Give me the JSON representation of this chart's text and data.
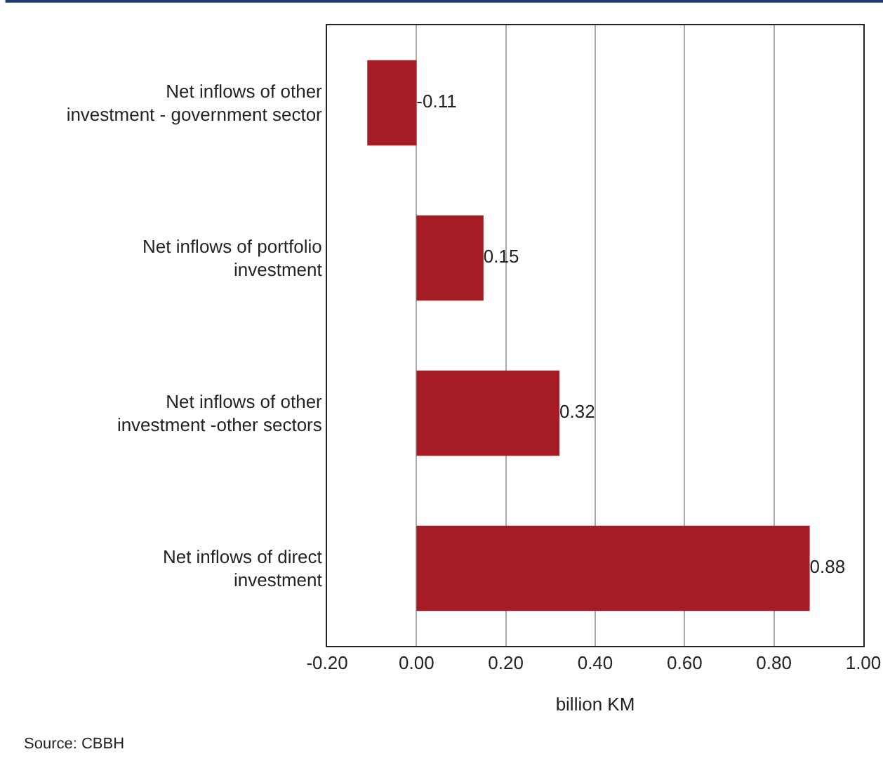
{
  "chart_data": {
    "type": "bar",
    "orientation": "horizontal",
    "categories": [
      "Net inflows of other investment - government sector",
      "Net inflows of portfolio investment",
      "Net inflows of other investment -other sectors",
      "Net inflows of direct investment"
    ],
    "values": [
      -0.11,
      0.15,
      0.32,
      0.88
    ],
    "color": "#a51c24",
    "xlabel": "billion KM",
    "xlim": [
      -0.2,
      1.0
    ],
    "xticks": [
      {
        "value": -0.2,
        "label": "-0.20"
      },
      {
        "value": 0,
        "label": "0.00"
      },
      {
        "value": 0.2,
        "label": "0.20"
      },
      {
        "value": 0.4,
        "label": "0.40"
      },
      {
        "value": 0.6,
        "label": "0.60"
      },
      {
        "value": 0.8,
        "label": "0.80"
      },
      {
        "value": 1.0,
        "label": "1.00"
      }
    ],
    "grid": "x",
    "data_labels": true,
    "annotations": [
      "Source: CBBH"
    ]
  }
}
